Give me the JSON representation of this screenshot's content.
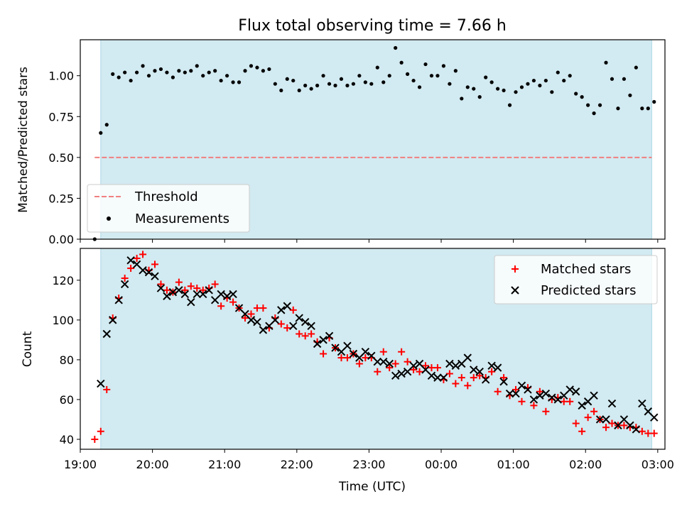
{
  "title": "Flux total observing time = 7.66 h",
  "colors": {
    "observing_band": "#add8e6",
    "threshold": "#f08080",
    "measurements": "#000000",
    "matched": "#ff0000",
    "predicted": "#000000"
  },
  "chart_data": [
    {
      "type": "scatter",
      "panel": "top",
      "ylabel": "Matched/Predicted stars",
      "xlabel": "",
      "xlim": [
        "19:00",
        "03:06"
      ],
      "ylim": [
        0,
        1.22
      ],
      "yticks": [
        "0.00",
        "0.25",
        "0.50",
        "0.75",
        "1.00"
      ],
      "ytick_values": [
        0,
        0.25,
        0.5,
        0.75,
        1.0
      ],
      "shaded_interval": [
        "19:17",
        "02:55"
      ],
      "legend": {
        "location": "lower-left",
        "entries": [
          "Threshold",
          "Measurements"
        ]
      },
      "threshold": {
        "name": "Threshold",
        "y": 0.5,
        "x": [
          "19:12",
          "02:55"
        ]
      },
      "series": [
        {
          "name": "Measurements",
          "x": [
            "19:12",
            "19:17",
            "19:22",
            "19:27",
            "19:32",
            "19:37",
            "19:42",
            "19:47",
            "19:52",
            "19:57",
            "20:02",
            "20:07",
            "20:12",
            "20:17",
            "20:22",
            "20:27",
            "20:32",
            "20:37",
            "20:42",
            "20:47",
            "20:52",
            "20:57",
            "21:02",
            "21:07",
            "21:12",
            "21:17",
            "21:22",
            "21:27",
            "21:32",
            "21:37",
            "21:42",
            "21:47",
            "21:52",
            "21:57",
            "22:02",
            "22:07",
            "22:12",
            "22:17",
            "22:22",
            "22:27",
            "22:32",
            "22:37",
            "22:42",
            "22:47",
            "22:52",
            "22:57",
            "23:02",
            "23:07",
            "23:12",
            "23:17",
            "23:22",
            "23:27",
            "23:32",
            "23:37",
            "23:42",
            "23:47",
            "23:52",
            "23:57",
            "00:02",
            "00:07",
            "00:12",
            "00:17",
            "00:22",
            "00:27",
            "00:32",
            "00:37",
            "00:42",
            "00:47",
            "00:52",
            "00:57",
            "01:02",
            "01:07",
            "01:12",
            "01:17",
            "01:22",
            "01:27",
            "01:32",
            "01:37",
            "01:42",
            "01:47",
            "01:52",
            "01:57",
            "02:02",
            "02:07",
            "02:12",
            "02:17",
            "02:22",
            "02:27",
            "02:32",
            "02:37",
            "02:42",
            "02:47",
            "02:52",
            "02:57"
          ],
          "y": [
            0.0,
            0.65,
            0.7,
            1.01,
            0.99,
            1.02,
            0.97,
            1.02,
            1.06,
            1.0,
            1.03,
            1.04,
            1.02,
            0.99,
            1.03,
            1.02,
            1.03,
            1.06,
            1.0,
            1.02,
            1.03,
            0.97,
            1.0,
            0.96,
            0.96,
            1.03,
            1.06,
            1.05,
            1.03,
            1.04,
            0.95,
            0.91,
            0.98,
            0.97,
            0.91,
            0.94,
            0.92,
            0.94,
            1.0,
            0.95,
            0.94,
            0.98,
            0.94,
            0.95,
            1.0,
            0.96,
            0.95,
            1.05,
            0.96,
            1.0,
            1.17,
            1.08,
            1.01,
            0.97,
            0.93,
            1.07,
            1.0,
            1.0,
            1.06,
            0.95,
            1.03,
            0.86,
            0.93,
            0.92,
            0.87,
            0.99,
            0.96,
            0.92,
            0.91,
            0.82,
            0.9,
            0.93,
            0.95,
            0.97,
            0.94,
            0.97,
            0.9,
            1.02,
            0.97,
            1.0,
            0.89,
            0.87,
            0.82,
            0.77,
            0.82,
            1.08,
            0.98,
            0.8,
            0.98,
            0.88,
            1.05,
            0.8,
            0.8,
            0.84
          ]
        }
      ]
    },
    {
      "type": "scatter",
      "panel": "bottom",
      "title": "",
      "xlabel": "Time (UTC)",
      "ylabel": "Count",
      "xlim": [
        "19:00",
        "03:06"
      ],
      "ylim": [
        35,
        136
      ],
      "yticks": [
        "40",
        "60",
        "80",
        "100",
        "120"
      ],
      "ytick_values": [
        40,
        60,
        80,
        100,
        120
      ],
      "xticks": [
        "19:00",
        "20:00",
        "21:00",
        "22:00",
        "23:00",
        "00:00",
        "01:00",
        "02:00",
        "03:00"
      ],
      "shaded_interval": [
        "19:17",
        "02:55"
      ],
      "legend": {
        "location": "top-right",
        "entries": [
          "Matched stars",
          "Predicted stars"
        ]
      },
      "series": [
        {
          "name": "Matched stars",
          "marker": "+",
          "x": [
            "19:12",
            "19:17",
            "19:22",
            "19:27",
            "19:32",
            "19:37",
            "19:42",
            "19:47",
            "19:52",
            "19:57",
            "20:02",
            "20:07",
            "20:12",
            "20:17",
            "20:22",
            "20:27",
            "20:32",
            "20:37",
            "20:42",
            "20:47",
            "20:52",
            "20:57",
            "21:02",
            "21:07",
            "21:12",
            "21:17",
            "21:22",
            "21:27",
            "21:32",
            "21:37",
            "21:42",
            "21:47",
            "21:52",
            "21:57",
            "22:02",
            "22:07",
            "22:12",
            "22:17",
            "22:22",
            "22:27",
            "22:32",
            "22:37",
            "22:42",
            "22:47",
            "22:52",
            "22:57",
            "23:02",
            "23:07",
            "23:12",
            "23:17",
            "23:22",
            "23:27",
            "23:32",
            "23:37",
            "23:42",
            "23:47",
            "23:52",
            "23:57",
            "00:02",
            "00:07",
            "00:12",
            "00:17",
            "00:22",
            "00:27",
            "00:32",
            "00:37",
            "00:42",
            "00:47",
            "00:52",
            "00:57",
            "01:02",
            "01:07",
            "01:12",
            "01:17",
            "01:22",
            "01:27",
            "01:32",
            "01:37",
            "01:42",
            "01:47",
            "01:52",
            "01:57",
            "02:02",
            "02:07",
            "02:12",
            "02:17",
            "02:22",
            "02:27",
            "02:32",
            "02:37",
            "02:42",
            "02:47",
            "02:52",
            "02:57"
          ],
          "y": [
            40,
            44,
            65,
            101,
            111,
            121,
            126,
            131,
            133,
            125,
            128,
            118,
            115,
            114,
            119,
            115,
            117,
            116,
            115,
            116,
            118,
            107,
            111,
            109,
            106,
            101,
            103,
            106,
            106,
            96,
            101,
            98,
            96,
            105,
            93,
            92,
            93,
            89,
            83,
            91,
            86,
            81,
            81,
            83,
            78,
            81,
            81,
            74,
            84,
            76,
            78,
            84,
            79,
            75,
            74,
            77,
            76,
            76,
            70,
            73,
            68,
            71,
            67,
            71,
            72,
            71,
            74,
            64,
            71,
            62,
            65,
            59,
            66,
            57,
            64,
            54,
            60,
            61,
            59,
            59,
            48,
            44,
            51,
            54,
            50,
            46,
            48,
            47,
            47,
            46,
            46,
            44,
            43,
            43
          ]
        },
        {
          "name": "Predicted stars",
          "marker": "x",
          "x": [
            "19:17",
            "19:22",
            "19:27",
            "19:32",
            "19:37",
            "19:42",
            "19:47",
            "19:52",
            "19:57",
            "20:02",
            "20:07",
            "20:12",
            "20:17",
            "20:22",
            "20:27",
            "20:32",
            "20:37",
            "20:42",
            "20:47",
            "20:52",
            "20:57",
            "21:02",
            "21:07",
            "21:12",
            "21:17",
            "21:22",
            "21:27",
            "21:32",
            "21:37",
            "21:42",
            "21:47",
            "21:52",
            "21:57",
            "22:02",
            "22:07",
            "22:12",
            "22:17",
            "22:22",
            "22:27",
            "22:32",
            "22:37",
            "22:42",
            "22:47",
            "22:52",
            "22:57",
            "23:02",
            "23:07",
            "23:12",
            "23:17",
            "23:22",
            "23:27",
            "23:32",
            "23:37",
            "23:42",
            "23:47",
            "23:52",
            "23:57",
            "00:02",
            "00:07",
            "00:12",
            "00:17",
            "00:22",
            "00:27",
            "00:32",
            "00:37",
            "00:42",
            "00:47",
            "00:52",
            "00:57",
            "01:02",
            "01:07",
            "01:12",
            "01:17",
            "01:22",
            "01:27",
            "01:32",
            "01:37",
            "01:42",
            "01:47",
            "01:52",
            "01:57",
            "02:02",
            "02:07",
            "02:12",
            "02:17",
            "02:22",
            "02:27",
            "02:32",
            "02:37",
            "02:42",
            "02:47",
            "02:52",
            "02:57"
          ],
          "y": [
            68,
            93,
            100,
            110,
            118,
            130,
            128,
            125,
            124,
            122,
            116,
            112,
            114,
            115,
            113,
            109,
            113,
            113,
            115,
            110,
            113,
            112,
            113,
            106,
            103,
            100,
            99,
            95,
            97,
            100,
            105,
            107,
            97,
            101,
            99,
            97,
            88,
            90,
            92,
            86,
            84,
            87,
            83,
            81,
            84,
            82,
            79,
            79,
            78,
            72,
            73,
            74,
            77,
            78,
            75,
            72,
            71,
            71,
            78,
            77,
            78,
            81,
            75,
            74,
            70,
            77,
            76,
            69,
            63,
            63,
            67,
            65,
            60,
            62,
            63,
            61,
            60,
            62,
            65,
            64,
            57,
            59,
            62,
            50,
            50,
            58,
            47,
            50,
            47,
            45,
            58,
            54,
            51
          ]
        }
      ]
    }
  ]
}
